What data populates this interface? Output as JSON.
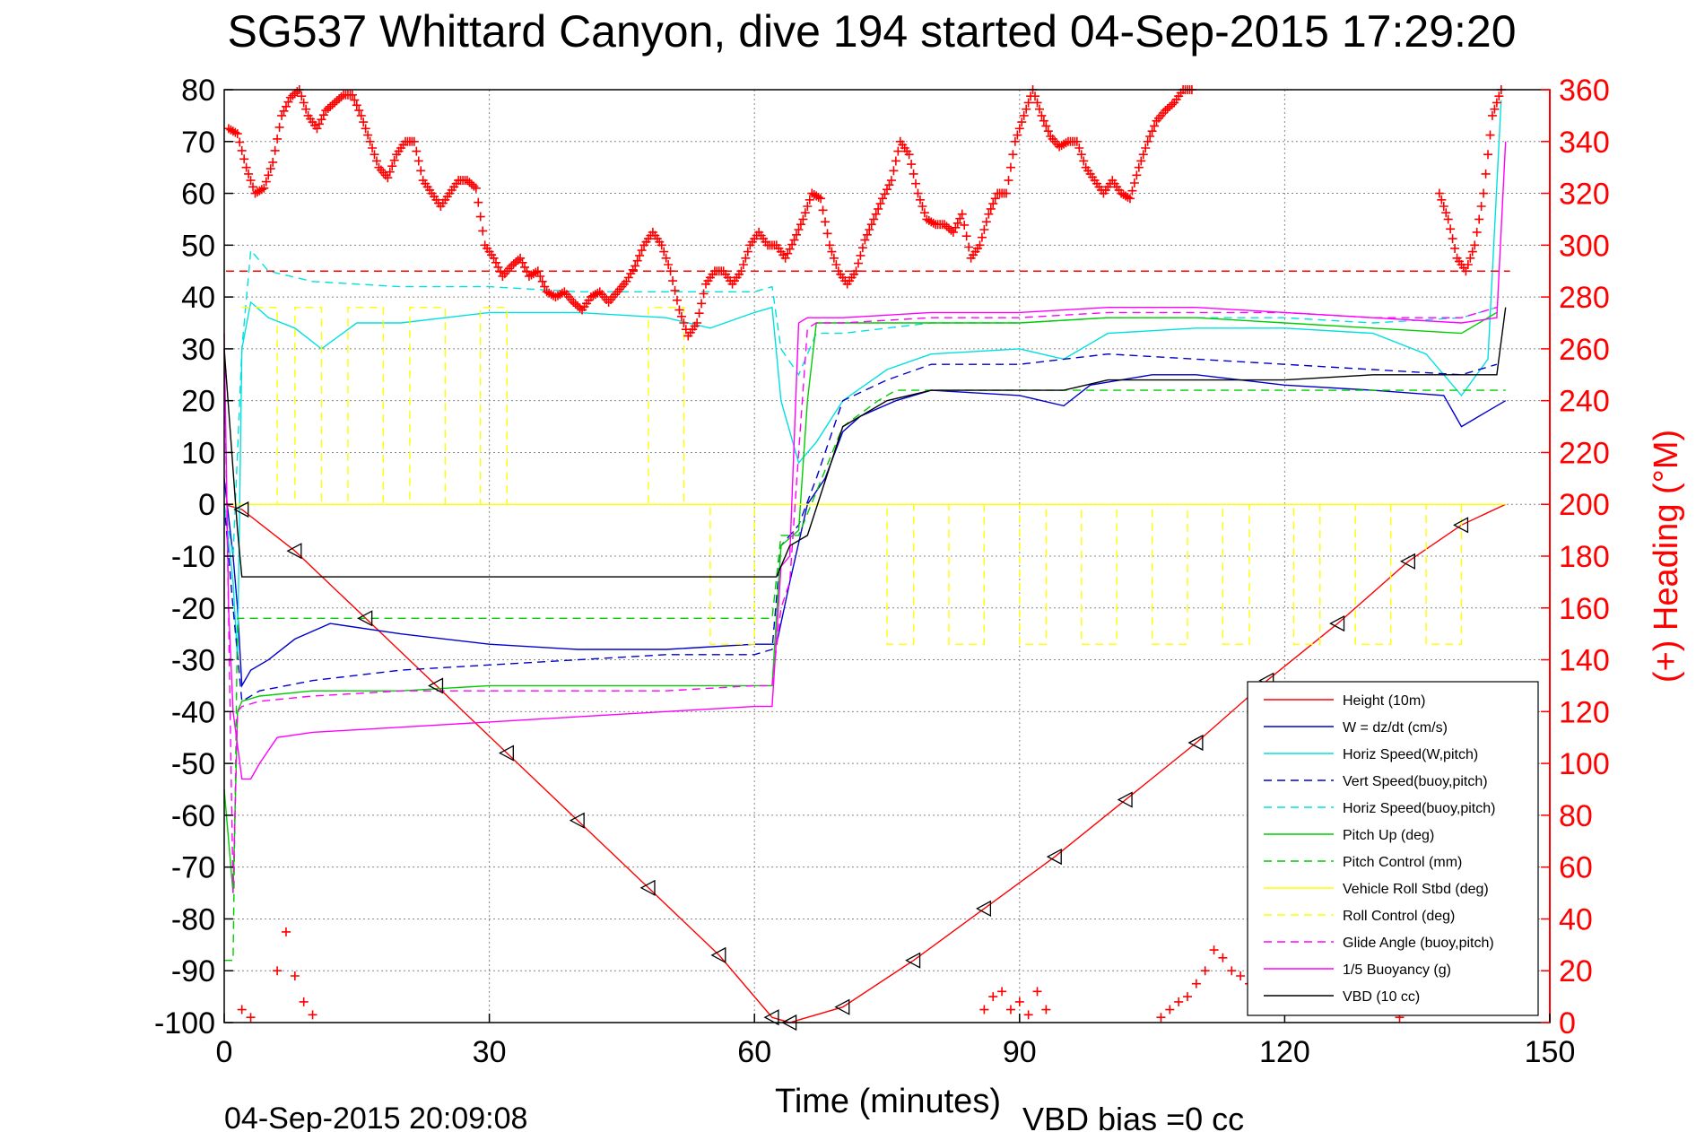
{
  "chart_data": {
    "type": "line",
    "title": "SG537 Whittard Canyon, dive 194 started 04-Sep-2015 17:29:20",
    "xlabel": "Time (minutes)",
    "ylabel": "",
    "y2label": "(+) Heading (°M)",
    "footer_left": "04-Sep-2015 20:09:08",
    "footer_right": "VBD bias =0 cc",
    "xlim": [
      0,
      150
    ],
    "ylim": [
      -100,
      80
    ],
    "y2lim": [
      0,
      360
    ],
    "xticks": [
      0,
      30,
      60,
      90,
      120,
      150
    ],
    "yticks": [
      80,
      70,
      60,
      50,
      40,
      30,
      20,
      10,
      0,
      -10,
      -20,
      -30,
      -40,
      -50,
      -60,
      -70,
      -80,
      -90,
      -100
    ],
    "y2ticks": [
      360,
      340,
      320,
      300,
      280,
      260,
      240,
      220,
      200,
      180,
      160,
      140,
      120,
      100,
      80,
      60,
      40,
      20,
      0
    ],
    "grid": true,
    "legend_position": "bottom-right",
    "heading_reference": 290,
    "colors": {
      "height": "#ff0000",
      "w": "#0000cc",
      "horiz_speed": "#00e0e0",
      "pitch": "#00cc00",
      "roll": "#ffff00",
      "glide": "#ff00ff",
      "buoyancy": "#ff00ff",
      "vbd": "#000000",
      "heading": "#ff0000",
      "axis_right": "#ff0000"
    },
    "series": [
      {
        "name": "Height (10m)",
        "color": "#ff0000",
        "dash": "solid",
        "x": [
          0,
          2,
          8,
          16,
          24,
          32,
          40,
          48,
          56,
          62,
          64,
          70,
          78,
          86,
          94,
          102,
          110,
          118,
          126,
          134,
          140,
          145
        ],
        "y": [
          0,
          -1,
          -9,
          -22,
          -35,
          -48,
          -61,
          -74,
          -87,
          -99,
          -100,
          -97,
          -88,
          -78,
          -68,
          -57,
          -46,
          -34,
          -23,
          -11,
          -4,
          0
        ]
      },
      {
        "name": "W = dz/dt (cm/s)",
        "color": "#0000cc",
        "dash": "solid",
        "x": [
          0,
          1,
          1.5,
          2,
          3,
          5,
          8,
          12,
          20,
          30,
          40,
          50,
          60,
          62.5,
          64,
          66,
          68,
          70,
          72,
          76,
          80,
          90,
          95,
          98,
          105,
          110,
          120,
          130,
          138,
          140,
          143,
          145
        ],
        "y": [
          5,
          -10,
          -20,
          -35,
          -32,
          -30,
          -26,
          -23,
          -25,
          -27,
          -28,
          -28,
          -27,
          -27,
          -15,
          0,
          5,
          14,
          17,
          20,
          22,
          21,
          19,
          23,
          25,
          25,
          23,
          22,
          21,
          15,
          18,
          20
        ]
      },
      {
        "name": "Horiz Speed(W,pitch)",
        "color": "#00e0e0",
        "dash": "solid",
        "x": [
          0,
          1,
          1.5,
          2,
          3,
          5,
          8,
          11,
          15,
          20,
          30,
          40,
          50,
          55,
          60,
          62,
          63,
          65,
          67,
          70,
          75,
          80,
          90,
          95,
          100,
          110,
          120,
          130,
          136,
          140,
          143,
          144.5
        ],
        "y": [
          0,
          -15,
          -30,
          30,
          39,
          36,
          34,
          30,
          35,
          35,
          37,
          37,
          36,
          34,
          37,
          38,
          20,
          8,
          12,
          20,
          26,
          29,
          30,
          28,
          33,
          34,
          34,
          33,
          29,
          21,
          28,
          78
        ]
      },
      {
        "name": "Vert Speed(buoy,pitch)",
        "color": "#0000cc",
        "dash": "dashed",
        "x": [
          0,
          1,
          2,
          4,
          10,
          20,
          30,
          40,
          50,
          60,
          62,
          63,
          65,
          67,
          70,
          75,
          80,
          90,
          100,
          110,
          120,
          130,
          140,
          144
        ],
        "y": [
          0,
          -20,
          -38,
          -36,
          -34,
          -32,
          -31,
          -30,
          -29,
          -29,
          -28,
          -8,
          -4,
          5,
          20,
          24,
          27,
          27,
          29,
          28,
          27,
          26,
          25,
          27
        ]
      },
      {
        "name": "Horiz Speed(buoy,pitch)",
        "color": "#00e0e0",
        "dash": "dashed",
        "x": [
          0,
          1,
          2,
          3,
          5,
          10,
          20,
          30,
          40,
          50,
          60,
          62,
          63,
          65,
          67,
          70,
          75,
          80,
          90,
          100,
          110,
          120,
          130,
          140,
          144
        ],
        "y": [
          0,
          -10,
          30,
          49,
          45,
          43,
          42,
          42,
          41,
          41,
          41,
          42,
          30,
          25,
          33,
          33,
          34,
          35,
          35,
          36,
          36,
          36,
          35,
          36,
          38
        ]
      },
      {
        "name": "Pitch Up (deg)",
        "color": "#00cc00",
        "dash": "solid",
        "x": [
          0,
          1,
          1.5,
          2,
          4,
          10,
          20,
          30,
          40,
          50,
          60,
          62,
          63,
          65,
          66,
          67,
          70,
          80,
          90,
          100,
          110,
          120,
          130,
          140,
          144
        ],
        "y": [
          -55,
          -75,
          -40,
          -38,
          -37,
          -36,
          -36,
          -35,
          -35,
          -35,
          -35,
          -35,
          -8,
          -5,
          20,
          35,
          35,
          35,
          35,
          36,
          36,
          35,
          34,
          33,
          37
        ]
      },
      {
        "name": "Pitch Control (mm)",
        "color": "#00cc00",
        "dash": "dashed",
        "x": [
          0,
          1,
          1.5,
          2,
          10,
          62,
          63,
          65,
          70,
          74,
          76,
          145
        ],
        "y": [
          -88,
          -88,
          -22,
          -22,
          -22,
          -22,
          -6,
          -6,
          15,
          20,
          22,
          22
        ]
      },
      {
        "name": "Vehicle Roll Stbd (deg)",
        "color": "#ffff00",
        "dash": "solid",
        "x": [
          0,
          30,
          60,
          90,
          120,
          145
        ],
        "y": [
          0,
          0,
          0,
          0,
          0,
          0
        ]
      },
      {
        "name": "Roll Control (deg)",
        "color": "#ffff00",
        "dash": "dashed",
        "x": [
          2,
          6,
          6,
          8,
          8,
          11,
          11,
          14,
          14,
          18,
          18,
          21,
          21,
          25,
          25,
          29,
          29,
          32,
          32,
          48,
          48,
          52,
          52,
          55,
          55,
          60,
          60,
          75,
          75,
          78,
          78,
          82,
          82,
          86,
          86,
          90,
          90,
          93,
          93,
          97,
          97,
          101,
          101,
          105,
          105,
          109,
          109,
          113,
          113,
          116,
          116,
          121,
          121,
          124,
          124,
          128,
          128,
          132,
          132,
          136,
          136,
          140,
          140,
          144
        ],
        "y": [
          38,
          38,
          0,
          0,
          38,
          38,
          0,
          0,
          38,
          38,
          0,
          0,
          38,
          38,
          0,
          0,
          38,
          38,
          0,
          0,
          38,
          38,
          0,
          0,
          -27,
          -27,
          0,
          0,
          -27,
          -27,
          0,
          0,
          -27,
          -27,
          0,
          0,
          -27,
          -27,
          0,
          0,
          -27,
          -27,
          0,
          0,
          -27,
          -27,
          0,
          0,
          -27,
          -27,
          0,
          0,
          -27,
          -27,
          0,
          0,
          -27,
          -27,
          0,
          0,
          -27,
          -27,
          0,
          0
        ]
      },
      {
        "name": "Glide Angle (buoy,pitch)",
        "color": "#ff00ff",
        "dash": "dashed",
        "x": [
          0,
          1,
          1.5,
          2,
          4,
          10,
          20,
          30,
          40,
          50,
          60,
          62,
          63,
          64,
          65,
          66,
          67,
          70,
          80,
          90,
          100,
          110,
          120,
          130,
          140,
          144
        ],
        "y": [
          30,
          -75,
          -40,
          -39,
          -38,
          -37,
          -36,
          -36,
          -36,
          -36,
          -35,
          -35,
          -20,
          -15,
          10,
          34,
          35,
          35,
          36,
          36,
          37,
          37,
          37,
          36,
          36,
          38
        ]
      },
      {
        "name": "1/5 Buoyancy (g)",
        "color": "#ff00ff",
        "dash": "solid",
        "x": [
          0,
          0.5,
          1,
          2,
          3,
          4,
          6,
          10,
          20,
          30,
          40,
          50,
          60,
          62,
          63,
          64,
          65,
          66,
          70,
          80,
          90,
          100,
          110,
          120,
          130,
          140,
          144,
          145
        ],
        "y": [
          33,
          -20,
          -40,
          -53,
          -53,
          -50,
          -45,
          -44,
          -43,
          -42,
          -41,
          -40,
          -39,
          -39,
          -12,
          -10,
          35,
          36,
          36,
          37,
          37,
          38,
          38,
          37,
          36,
          35,
          36,
          70
        ]
      },
      {
        "name": "VBD (10 cc)",
        "color": "#000000",
        "dash": "solid",
        "x": [
          0,
          1.5,
          2,
          2.5,
          10,
          62.5,
          64,
          66,
          70,
          75,
          80,
          90,
          95,
          100,
          110,
          120,
          130,
          140,
          144,
          145
        ],
        "y": [
          30,
          -5,
          -14,
          -14,
          -14,
          -14,
          -8,
          -6,
          15,
          20,
          22,
          22,
          22,
          24,
          24,
          24,
          25,
          25,
          25,
          38
        ]
      }
    ],
    "heading_series": {
      "name": "(+) Heading (°M)",
      "color": "#ff0000",
      "x": [
        0.5,
        1.5,
        2.5,
        3.5,
        4.5,
        5.5,
        6.5,
        7.5,
        8.5,
        9.5,
        10.5,
        11.5,
        12.5,
        13.5,
        14.5,
        15.5,
        16.5,
        17.5,
        18.5,
        19.5,
        20.5,
        21.5,
        22.5,
        23.5,
        24.5,
        25.5,
        26.5,
        27.5,
        28.5,
        29.5,
        30.5,
        31.5,
        32.5,
        33.5,
        34.5,
        35.5,
        36.5,
        37.5,
        38.5,
        39.5,
        40.5,
        41.5,
        42.5,
        43.5,
        44.5,
        45.5,
        46.5,
        47.5,
        48.5,
        49.5,
        50.5,
        51.5,
        52.5,
        53.5,
        54.5,
        55.5,
        56.5,
        57.5,
        58.5,
        59.5,
        60.5,
        61.5,
        62.5,
        63.5,
        64.5,
        65.5,
        66.5,
        67.5,
        68.5,
        69.5,
        70.5,
        71.5,
        72.5,
        73.5,
        74.5,
        75.5,
        76.5,
        77.5,
        78.5,
        79.5,
        80.5,
        81.5,
        82.5,
        83.5,
        84.5,
        85.5,
        86.5,
        87.5,
        88.5,
        89.5,
        90.5,
        91.5,
        92.5,
        93.5,
        94.5,
        95.5,
        96.5,
        97.5,
        98.5,
        99.5,
        100.5,
        101.5,
        102.5,
        103.5,
        104.5,
        105.5,
        106.5,
        107.5,
        108.5,
        109.5,
        137.5,
        138.5,
        139.5,
        140.5,
        141.5,
        142.5,
        143.5,
        144.5
      ],
      "y": [
        345,
        343,
        330,
        320,
        322,
        332,
        350,
        357,
        360,
        350,
        345,
        352,
        355,
        358,
        358,
        350,
        340,
        330,
        326,
        335,
        340,
        340,
        325,
        320,
        315,
        320,
        325,
        325,
        322,
        300,
        295,
        288,
        292,
        295,
        288,
        290,
        282,
        280,
        282,
        278,
        275,
        280,
        282,
        278,
        282,
        286,
        292,
        300,
        305,
        300,
        290,
        275,
        265,
        270,
        285,
        290,
        290,
        285,
        290,
        300,
        305,
        300,
        300,
        295,
        302,
        310,
        320,
        318,
        300,
        290,
        285,
        290,
        302,
        310,
        318,
        325,
        340,
        335,
        320,
        310,
        308,
        308,
        305,
        312,
        295,
        300,
        312,
        320,
        320,
        340,
        350,
        360,
        350,
        342,
        338,
        340,
        340,
        330,
        325,
        320,
        325,
        320,
        318,
        330,
        340,
        348,
        352,
        355,
        360,
        362,
        320,
        310,
        295,
        290,
        300,
        320,
        350,
        360
      ]
    },
    "heading_series_low": {
      "x": [
        2,
        3,
        6,
        7,
        8,
        9,
        10,
        86,
        87,
        88,
        89,
        90,
        91,
        92,
        93,
        106,
        107,
        108,
        109,
        110,
        111,
        112,
        113,
        114,
        115,
        116,
        117,
        118,
        119,
        120,
        130,
        131,
        132,
        133
      ],
      "y": [
        5,
        2,
        20,
        35,
        18,
        8,
        3,
        5,
        10,
        12,
        5,
        8,
        3,
        12,
        5,
        2,
        5,
        8,
        10,
        15,
        20,
        28,
        25,
        20,
        18,
        15,
        12,
        10,
        8,
        5,
        8,
        10,
        5,
        2
      ]
    },
    "legend": [
      "Height (10m)",
      "W = dz/dt (cm/s)",
      "Horiz Speed(W,pitch)",
      "Vert Speed(buoy,pitch)",
      "Horiz Speed(buoy,pitch)",
      "Pitch Up (deg)",
      "Pitch Control (mm)",
      "Vehicle Roll Stbd (deg)",
      "Roll Control (deg)",
      "Glide Angle (buoy,pitch)",
      "1/5 Buoyancy (g)",
      "VBD (10 cc)"
    ]
  }
}
